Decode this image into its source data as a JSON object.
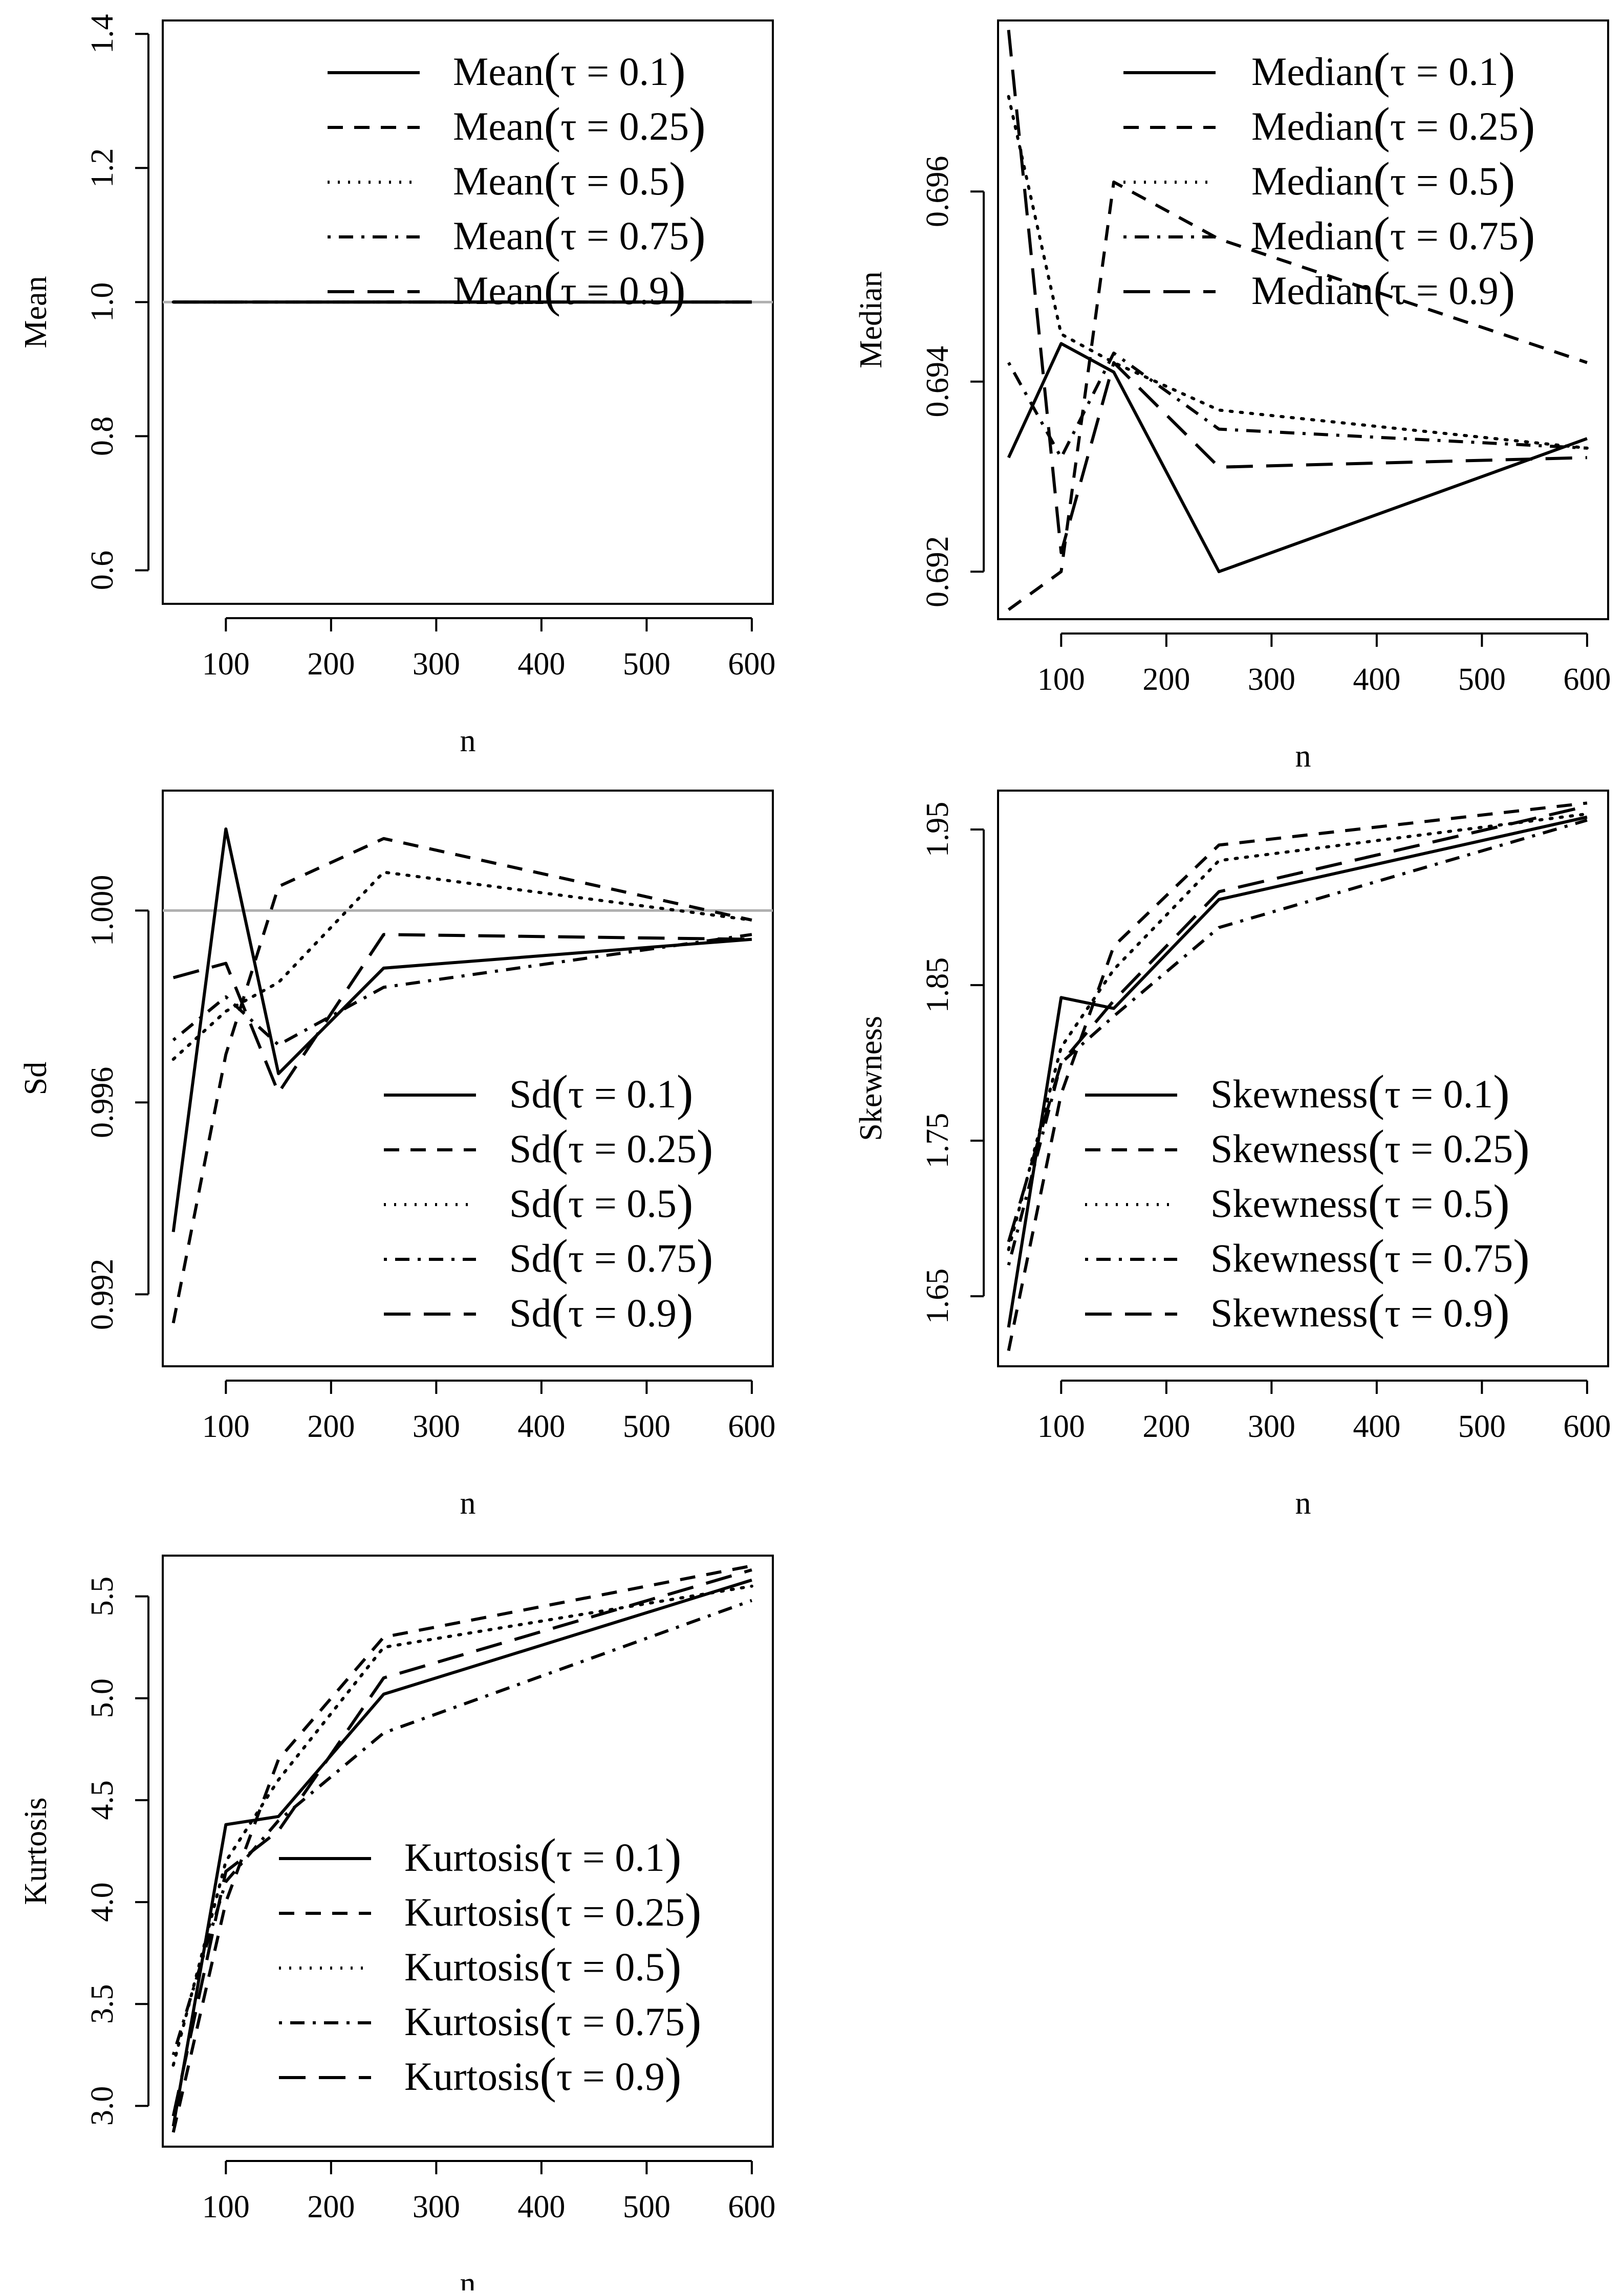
{
  "chart_data": [
    {
      "id": "mean",
      "type": "line",
      "xlabel": "n",
      "ylabel": "Mean",
      "x": [
        50,
        100,
        150,
        250,
        600
      ],
      "xlim": [
        40,
        620
      ],
      "ylim": [
        0.55,
        1.42
      ],
      "xticks": [
        "100",
        "200",
        "300",
        "400",
        "500",
        "600"
      ],
      "xtick_values": [
        100,
        200,
        300,
        400,
        500,
        600
      ],
      "yticks": [
        "0.6",
        "0.8",
        "1.0",
        "1.2",
        "1.4"
      ],
      "ytick_values": [
        0.6,
        0.8,
        1.0,
        1.2,
        1.4
      ],
      "refline": 1.0,
      "legend_position": "top-right",
      "series": [
        {
          "name": "Mean",
          "tau": "0.1",
          "style": "solid",
          "values": [
            1.0,
            1.0,
            1.0,
            1.0,
            1.0
          ]
        },
        {
          "name": "Mean",
          "tau": "0.25",
          "style": "dashed",
          "values": [
            1.0,
            1.0,
            1.0,
            1.0,
            1.0
          ]
        },
        {
          "name": "Mean",
          "tau": "0.5",
          "style": "dotted",
          "values": [
            1.0,
            1.0,
            1.0,
            1.0,
            1.0
          ]
        },
        {
          "name": "Mean",
          "tau": "0.75",
          "style": "dotdash",
          "values": [
            1.0,
            1.0,
            1.0,
            1.0,
            1.0
          ]
        },
        {
          "name": "Mean",
          "tau": "0.9",
          "style": "longdash",
          "values": [
            1.0,
            1.0,
            1.0,
            1.0,
            1.0
          ]
        }
      ]
    },
    {
      "id": "median",
      "type": "line",
      "xlabel": "n",
      "ylabel": "Median",
      "x": [
        50,
        100,
        150,
        250,
        600
      ],
      "xlim": [
        40,
        620
      ],
      "ylim": [
        0.6915,
        0.6978
      ],
      "xticks": [
        "100",
        "200",
        "300",
        "400",
        "500",
        "600"
      ],
      "xtick_values": [
        100,
        200,
        300,
        400,
        500,
        600
      ],
      "yticks": [
        "0.692",
        "0.694",
        "0.696"
      ],
      "ytick_values": [
        0.692,
        0.694,
        0.696
      ],
      "legend_position": "top-right",
      "series": [
        {
          "name": "Median",
          "tau": "0.1",
          "style": "solid",
          "values": [
            0.6932,
            0.6944,
            0.6941,
            0.692,
            0.6934
          ]
        },
        {
          "name": "Median",
          "tau": "0.25",
          "style": "dashed",
          "values": [
            0.6916,
            0.692,
            0.6961,
            0.6955,
            0.6942
          ]
        },
        {
          "name": "Median",
          "tau": "0.5",
          "style": "dotted",
          "values": [
            0.697,
            0.6945,
            0.6942,
            0.6937,
            0.6933
          ]
        },
        {
          "name": "Median",
          "tau": "0.75",
          "style": "dotdash",
          "values": [
            0.6942,
            0.6932,
            0.6943,
            0.6935,
            0.6933
          ]
        },
        {
          "name": "Median",
          "tau": "0.9",
          "style": "longdash",
          "values": [
            0.6977,
            0.6922,
            0.6942,
            0.6931,
            0.6932
          ]
        }
      ]
    },
    {
      "id": "sd",
      "type": "line",
      "xlabel": "n",
      "ylabel": "Sd",
      "x": [
        50,
        100,
        150,
        250,
        600
      ],
      "xlim": [
        40,
        620
      ],
      "ylim": [
        0.9905,
        1.0025
      ],
      "xticks": [
        "100",
        "200",
        "300",
        "400",
        "500",
        "600"
      ],
      "xtick_values": [
        100,
        200,
        300,
        400,
        500,
        600
      ],
      "yticks": [
        "0.992",
        "0.996",
        "1.000"
      ],
      "ytick_values": [
        0.992,
        0.996,
        1.0
      ],
      "refline": 1.0,
      "legend_position": "bottom-right",
      "series": [
        {
          "name": "Sd",
          "tau": "0.1",
          "style": "solid",
          "values": [
            0.9933,
            1.0017,
            0.9966,
            0.9988,
            0.9994
          ]
        },
        {
          "name": "Sd",
          "tau": "0.25",
          "style": "dashed",
          "values": [
            0.9914,
            0.997,
            1.0005,
            1.0015,
            0.9998
          ]
        },
        {
          "name": "Sd",
          "tau": "0.5",
          "style": "dotted",
          "values": [
            0.9969,
            0.9979,
            0.9985,
            1.0008,
            0.9998
          ]
        },
        {
          "name": "Sd",
          "tau": "0.75",
          "style": "dotdash",
          "values": [
            0.9973,
            0.9982,
            0.9972,
            0.9984,
            0.9995
          ]
        },
        {
          "name": "Sd",
          "tau": "0.9",
          "style": "longdash",
          "values": [
            0.9986,
            0.9989,
            0.9962,
            0.9995,
            0.9994
          ]
        }
      ]
    },
    {
      "id": "skewness",
      "type": "line",
      "xlabel": "n",
      "ylabel": "Skewness",
      "x": [
        50,
        100,
        150,
        250,
        600
      ],
      "xlim": [
        40,
        620
      ],
      "ylim": [
        1.605,
        1.975
      ],
      "xticks": [
        "100",
        "200",
        "300",
        "400",
        "500",
        "600"
      ],
      "xtick_values": [
        100,
        200,
        300,
        400,
        500,
        600
      ],
      "yticks": [
        "1.65",
        "1.75",
        "1.85",
        "1.95"
      ],
      "ytick_values": [
        1.65,
        1.75,
        1.85,
        1.95
      ],
      "legend_position": "bottom-right",
      "series": [
        {
          "name": "Skewness",
          "tau": "0.1",
          "style": "solid",
          "values": [
            1.63,
            1.842,
            1.835,
            1.905,
            1.958
          ]
        },
        {
          "name": "Skewness",
          "tau": "0.25",
          "style": "dashed",
          "values": [
            1.615,
            1.78,
            1.875,
            1.94,
            1.967
          ]
        },
        {
          "name": "Skewness",
          "tau": "0.5",
          "style": "dotted",
          "values": [
            1.68,
            1.81,
            1.86,
            1.93,
            1.96
          ]
        },
        {
          "name": "Skewness",
          "tau": "0.75",
          "style": "dotdash",
          "values": [
            1.67,
            1.8,
            1.83,
            1.887,
            1.956
          ]
        },
        {
          "name": "Skewness",
          "tau": "0.9",
          "style": "longdash",
          "values": [
            1.685,
            1.8,
            1.84,
            1.91,
            1.965
          ]
        }
      ]
    },
    {
      "id": "kurtosis",
      "type": "line",
      "xlabel": "n",
      "ylabel": "Kurtosis",
      "x": [
        50,
        100,
        150,
        250,
        600
      ],
      "xlim": [
        40,
        620
      ],
      "ylim": [
        2.8,
        5.7
      ],
      "xticks": [
        "100",
        "200",
        "300",
        "400",
        "500",
        "600"
      ],
      "xtick_values": [
        100,
        200,
        300,
        400,
        500,
        600
      ],
      "yticks": [
        "3.0",
        "3.5",
        "4.0",
        "4.5",
        "5.0",
        "5.5"
      ],
      "ytick_values": [
        3.0,
        3.5,
        4.0,
        4.5,
        5.0,
        5.5
      ],
      "legend_position": "bottom-right",
      "series": [
        {
          "name": "Kurtosis",
          "tau": "0.1",
          "style": "solid",
          "values": [
            2.9,
            4.38,
            4.42,
            5.02,
            5.58
          ]
        },
        {
          "name": "Kurtosis",
          "tau": "0.25",
          "style": "dashed",
          "values": [
            2.87,
            4.0,
            4.7,
            5.3,
            5.65
          ]
        },
        {
          "name": "Kurtosis",
          "tau": "0.5",
          "style": "dotted",
          "values": [
            3.2,
            4.2,
            4.6,
            5.25,
            5.55
          ]
        },
        {
          "name": "Kurtosis",
          "tau": "0.75",
          "style": "dotdash",
          "values": [
            3.25,
            4.1,
            4.4,
            4.83,
            5.48
          ]
        },
        {
          "name": "Kurtosis",
          "tau": "0.9",
          "style": "longdash",
          "values": [
            2.95,
            4.15,
            4.35,
            5.1,
            5.63
          ]
        }
      ]
    }
  ]
}
